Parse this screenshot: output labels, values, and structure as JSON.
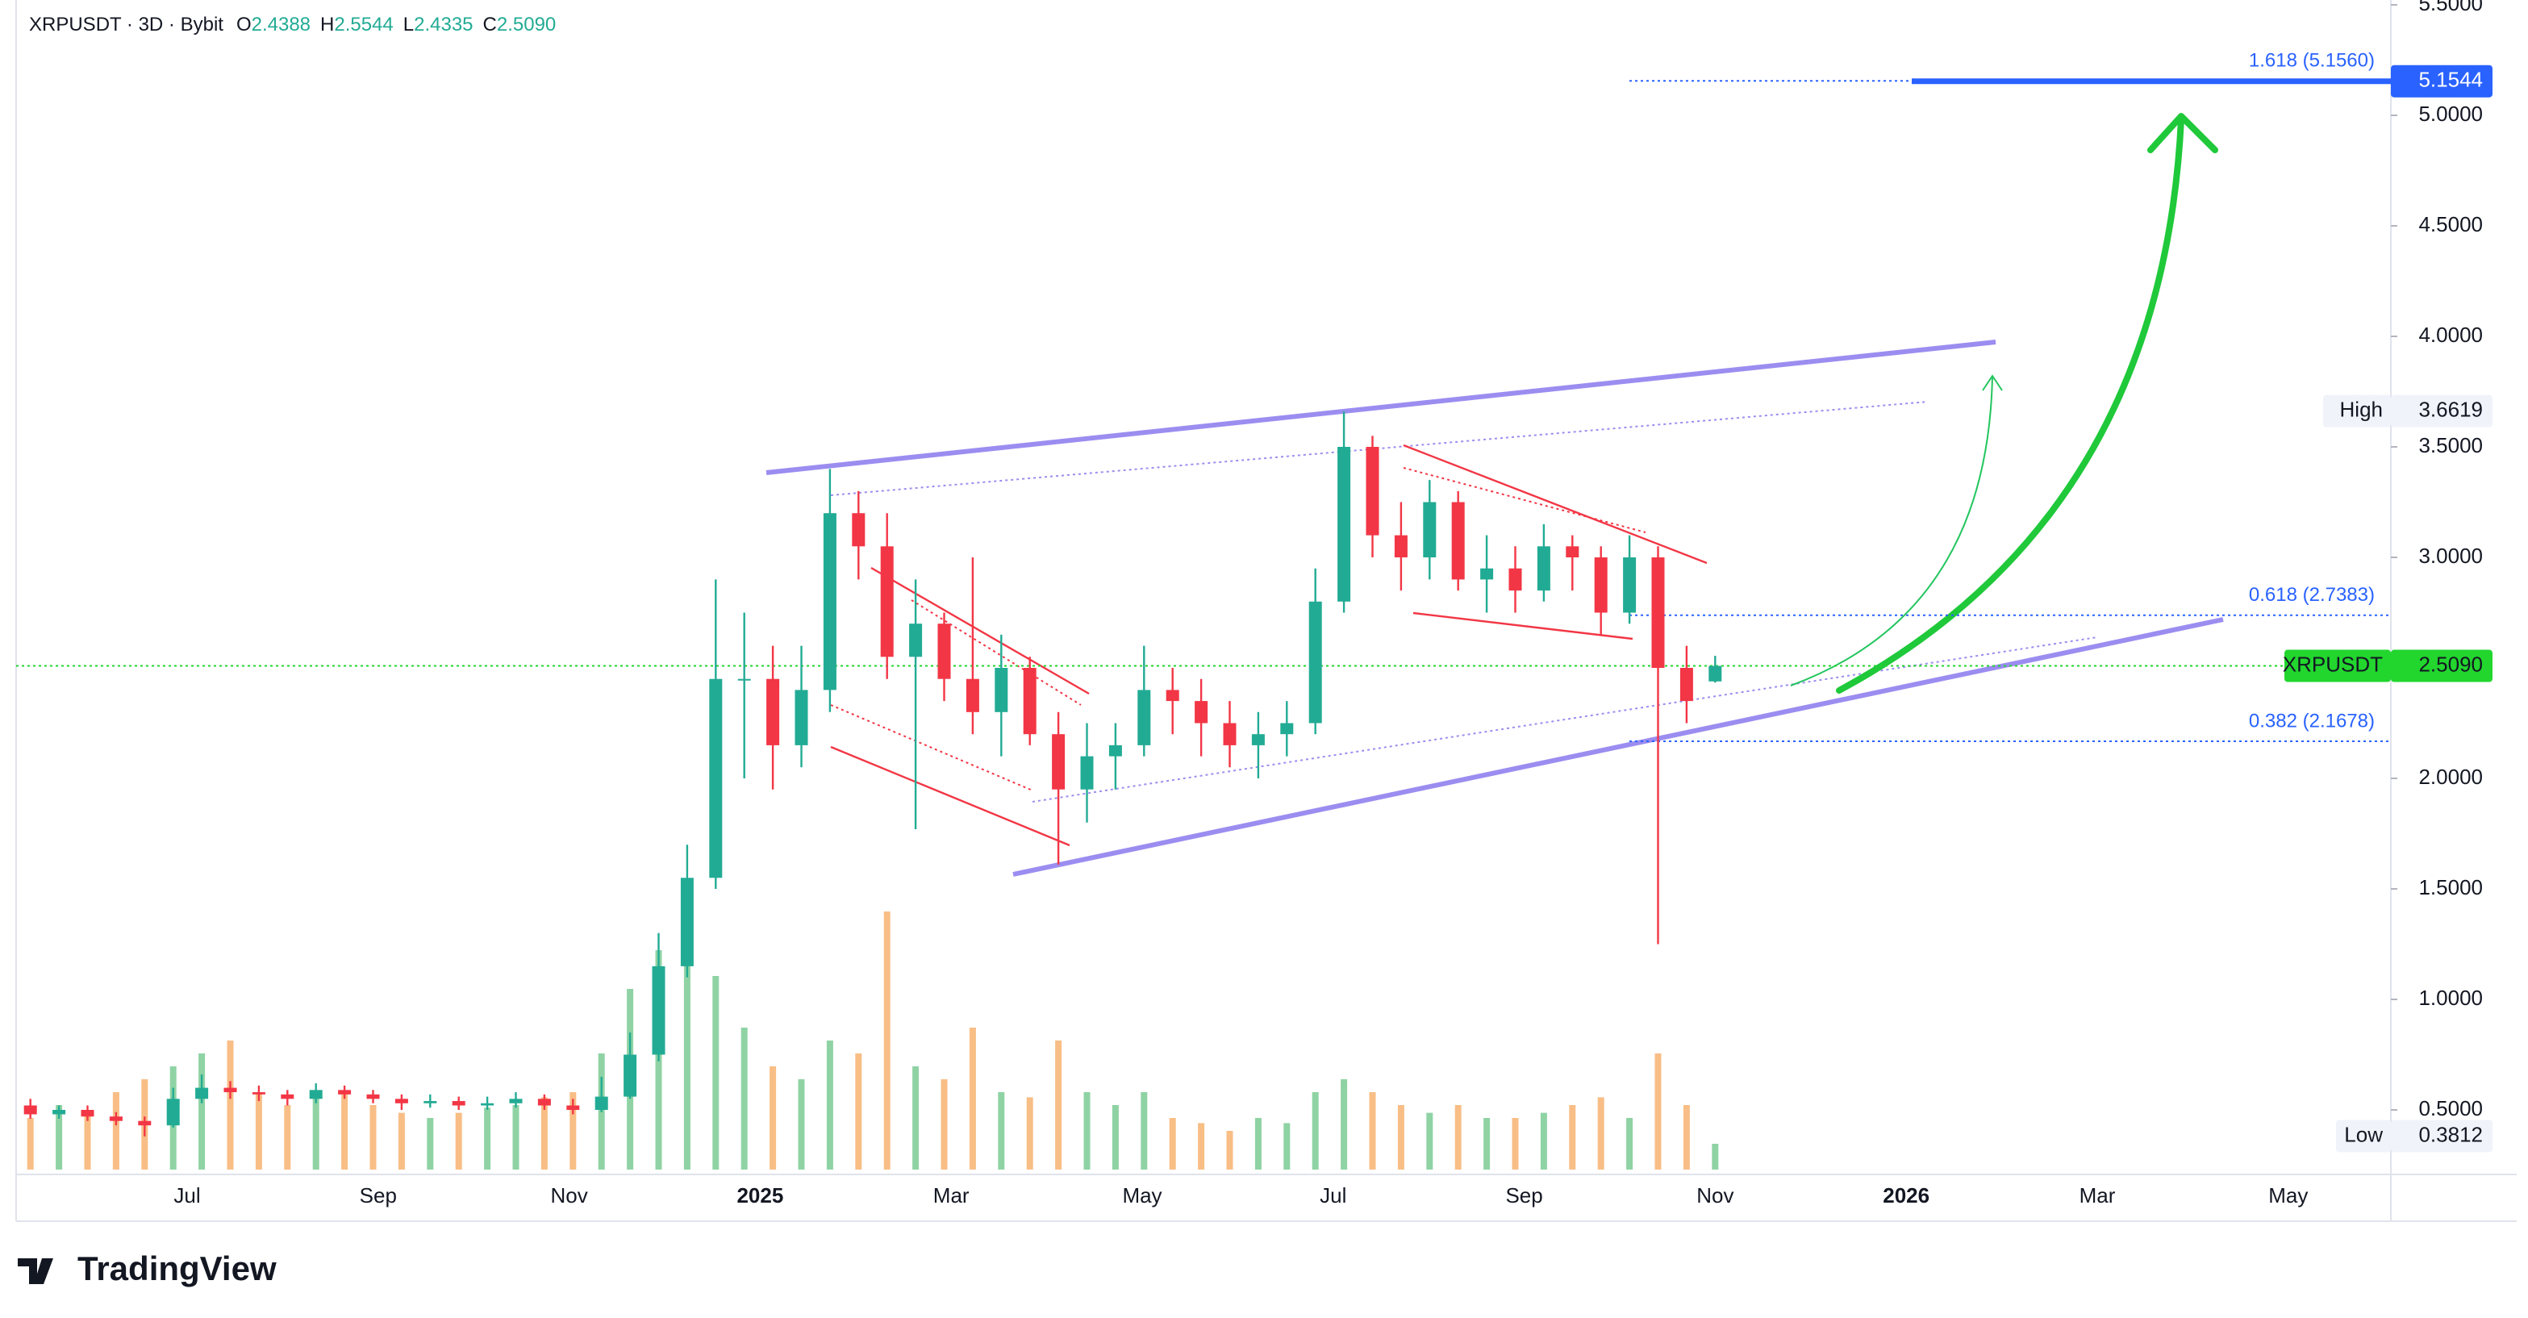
{
  "chart_data": {
    "type": "candlestick",
    "symbol": "XRPUSDT · 3D · Bybit",
    "ohlc": [
      {
        "label": "O",
        "value": "2.4388"
      },
      {
        "label": "H",
        "value": "2.5544"
      },
      {
        "label": "L",
        "value": "2.4335"
      },
      {
        "label": "C",
        "value": "2.5090"
      }
    ],
    "up_color": "#22ab94",
    "down_color": "#f23645",
    "volume_up_color": "#8fd3a4",
    "volume_down_color": "#f8be86",
    "open": [
      0.52,
      0.48,
      0.5,
      0.47,
      0.45,
      0.43,
      0.55,
      0.6,
      0.58,
      0.57,
      0.55,
      0.59,
      0.57,
      0.55,
      0.53,
      0.54,
      0.52,
      0.53,
      0.55,
      0.52,
      0.5,
      0.56,
      0.75,
      1.15,
      1.55,
      2.45,
      2.45,
      2.15,
      2.4,
      3.2,
      3.05,
      2.55,
      2.7,
      2.45,
      2.3,
      2.5,
      2.2,
      1.95,
      2.1,
      2.15,
      2.4,
      2.35,
      2.25,
      2.15,
      2.2,
      2.25,
      2.8,
      3.5,
      3.1,
      3.0,
      3.25,
      2.9,
      2.95,
      2.85,
      3.05,
      3.0,
      2.75,
      3.0,
      2.5,
      2.4388
    ],
    "high": [
      0.55,
      0.52,
      0.52,
      0.49,
      0.47,
      0.6,
      0.66,
      0.63,
      0.61,
      0.59,
      0.62,
      0.61,
      0.59,
      0.57,
      0.57,
      0.56,
      0.56,
      0.58,
      0.57,
      0.55,
      0.65,
      0.85,
      1.3,
      1.7,
      2.9,
      2.75,
      2.6,
      2.6,
      3.4,
      3.3,
      3.2,
      2.9,
      2.75,
      3.0,
      2.65,
      2.55,
      2.3,
      2.25,
      2.25,
      2.6,
      2.5,
      2.45,
      2.35,
      2.3,
      2.35,
      2.95,
      3.66,
      3.55,
      3.25,
      3.35,
      3.3,
      3.1,
      3.05,
      3.15,
      3.1,
      3.05,
      3.1,
      3.05,
      2.6,
      2.5544
    ],
    "low": [
      0.46,
      0.46,
      0.45,
      0.43,
      0.38,
      0.42,
      0.53,
      0.55,
      0.54,
      0.52,
      0.53,
      0.55,
      0.53,
      0.5,
      0.51,
      0.5,
      0.5,
      0.51,
      0.5,
      0.48,
      0.49,
      0.55,
      0.72,
      1.1,
      1.5,
      2.0,
      1.95,
      2.05,
      2.3,
      2.9,
      2.45,
      1.77,
      2.35,
      2.2,
      2.1,
      2.15,
      1.61,
      1.8,
      1.95,
      2.1,
      2.2,
      2.1,
      2.05,
      2.0,
      2.1,
      2.2,
      2.75,
      3.0,
      2.85,
      2.9,
      2.85,
      2.75,
      2.75,
      2.8,
      2.85,
      2.65,
      2.7,
      1.25,
      2.25,
      2.4335
    ],
    "close": [
      0.48,
      0.5,
      0.47,
      0.45,
      0.43,
      0.55,
      0.6,
      0.58,
      0.57,
      0.55,
      0.59,
      0.57,
      0.55,
      0.53,
      0.54,
      0.52,
      0.53,
      0.55,
      0.52,
      0.5,
      0.56,
      0.75,
      1.15,
      1.55,
      2.45,
      2.45,
      2.15,
      2.4,
      3.2,
      3.05,
      2.55,
      2.7,
      2.45,
      2.3,
      2.5,
      2.2,
      1.95,
      2.1,
      2.15,
      2.4,
      2.35,
      2.25,
      2.15,
      2.2,
      2.25,
      2.8,
      3.5,
      3.1,
      3.0,
      3.25,
      2.9,
      2.95,
      2.85,
      3.05,
      3.0,
      2.75,
      3.0,
      2.5,
      2.35,
      2.509
    ],
    "volume": [
      20,
      25,
      22,
      30,
      35,
      40,
      45,
      50,
      30,
      25,
      28,
      30,
      25,
      22,
      20,
      22,
      24,
      25,
      28,
      30,
      45,
      70,
      85,
      90,
      75,
      55,
      40,
      35,
      50,
      45,
      100,
      40,
      35,
      55,
      30,
      28,
      50,
      30,
      25,
      30,
      20,
      18,
      15,
      20,
      18,
      30,
      35,
      30,
      25,
      22,
      25,
      20,
      20,
      22,
      25,
      28,
      20,
      45,
      25,
      10
    ],
    "x_labels": [
      "Jul",
      "Sep",
      "Nov",
      "2025",
      "Mar",
      "May",
      "Jul",
      "Sep",
      "Nov",
      "2026",
      "Mar",
      "May"
    ],
    "ylim": [
      0.208,
      5.522
    ],
    "yticks": [
      {
        "value": 0.5,
        "label": "0.5000"
      },
      {
        "value": 1.0,
        "label": "1.0000"
      },
      {
        "value": 1.5,
        "label": "1.5000"
      },
      {
        "value": 2.0,
        "label": "2.0000"
      },
      {
        "value": 2.5,
        "label": "2.5000"
      },
      {
        "value": 3.0,
        "label": "3.0000"
      },
      {
        "value": 3.5,
        "label": "3.5000"
      },
      {
        "value": 4.0,
        "label": "4.0000"
      },
      {
        "value": 4.5,
        "label": "4.5000"
      },
      {
        "value": 5.0,
        "label": "5.0000"
      },
      {
        "value": 5.5,
        "label": "5.5000"
      }
    ],
    "fib_levels": [
      {
        "label": "1.618 (5.1560)",
        "value": 5.156
      },
      {
        "label": "0.618 (2.7383)",
        "value": 2.7383
      },
      {
        "label": "0.382 (2.1678)",
        "value": 2.1678
      }
    ],
    "price_tags": [
      {
        "label": "5.1544",
        "value": 5.1544,
        "color": "#2962ff",
        "text_color": "#ffffff"
      },
      {
        "name": "High",
        "label": "3.6619",
        "value": 3.6619,
        "color": "#f0f3fa",
        "text_color": "#131722"
      },
      {
        "name": "XRPUSDT",
        "label": "2.5090",
        "value": 2.509,
        "color": "#22d62e",
        "text_color": "#131722"
      },
      {
        "name": "Low",
        "label": "0.3812",
        "value": 0.3812,
        "color": "#f0f3fa",
        "text_color": "#131722"
      }
    ],
    "brand": "TradingView"
  }
}
